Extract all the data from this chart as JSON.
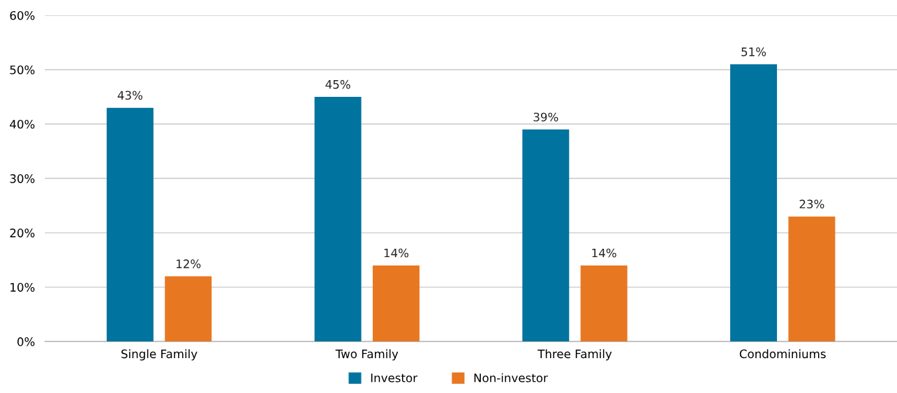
{
  "chart_data": {
    "type": "bar",
    "categories": [
      "Single Family",
      "Two Family",
      "Three Family",
      "Condominiums"
    ],
    "series": [
      {
        "name": "Investor",
        "color": "#00739e",
        "values": [
          43,
          45,
          39,
          51
        ],
        "value_labels": [
          "43%",
          "45%",
          "39%",
          "51%"
        ]
      },
      {
        "name": "Non-investor",
        "color": "#e87722",
        "values": [
          12,
          14,
          14,
          23
        ],
        "value_labels": [
          "12%",
          "14%",
          "14%",
          "23%"
        ]
      }
    ],
    "ylim": [
      0,
      60
    ],
    "yticks": [
      {
        "value": 0,
        "label": "0%"
      },
      {
        "value": 10,
        "label": "10%"
      },
      {
        "value": 20,
        "label": "20%"
      },
      {
        "value": 30,
        "label": "30%"
      },
      {
        "value": 40,
        "label": "40%"
      },
      {
        "value": 50,
        "label": "50%"
      },
      {
        "value": 60,
        "label": "60%"
      }
    ],
    "grid": "y",
    "legend": "bottom"
  }
}
